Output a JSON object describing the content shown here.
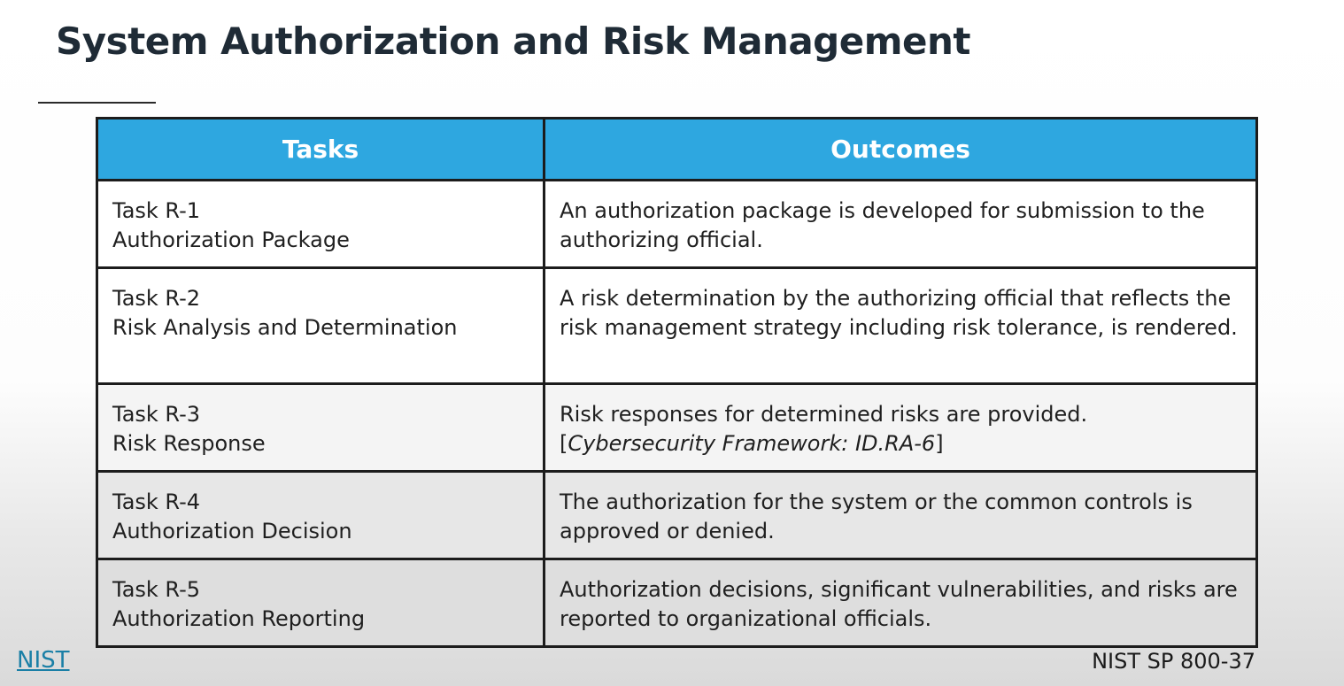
{
  "title": "System Authorization and Risk Management",
  "table": {
    "headers": {
      "tasks": "Tasks",
      "outcomes": "Outcomes"
    },
    "rows": [
      {
        "task_id": "Task R-1",
        "task_name": "Authorization Package",
        "outcome": "An authorization package is developed for submission to the authorizing official."
      },
      {
        "task_id": "Task R-2",
        "task_name": "Risk Analysis and Determination",
        "outcome": "A risk determination by the authorizing official that reflects the risk management strategy including risk tolerance, is rendered."
      },
      {
        "task_id": "Task R-3",
        "task_name": "Risk Response",
        "outcome": "Risk responses for determined risks are provided.",
        "outcome_ref_open": "[",
        "outcome_ref": "Cybersecurity Framework: ID.RA-6",
        "outcome_ref_close": "]"
      },
      {
        "task_id": "Task R-4",
        "task_name": "Authorization Decision",
        "outcome": "The authorization for the system or the common controls is approved or denied."
      },
      {
        "task_id": "Task R-5",
        "task_name": "Authorization Reporting",
        "outcome": "Authorization decisions, significant vulnerabilities, and risks are reported to organizational officials."
      }
    ]
  },
  "footer": {
    "link": "NIST",
    "source": "NIST SP 800-37"
  }
}
